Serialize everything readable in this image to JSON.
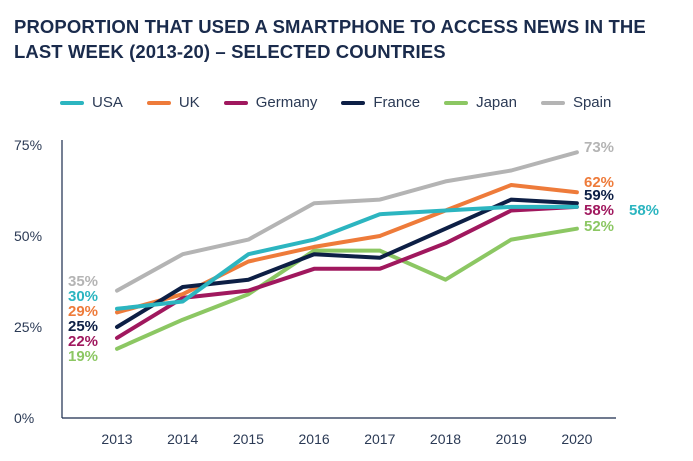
{
  "chart_data": {
    "type": "line",
    "title": "PROPORTION THAT USED A SMARTPHONE TO ACCESS NEWS IN THE LAST WEEK (2013-20) – SELECTED COUNTRIES",
    "xlabel": "",
    "ylabel": "",
    "ylim": [
      0,
      75
    ],
    "y_ticks": [
      0,
      25,
      50,
      75
    ],
    "y_tick_labels": [
      "0%",
      "25%",
      "50%",
      "75%"
    ],
    "categories": [
      "2013",
      "2014",
      "2015",
      "2016",
      "2017",
      "2018",
      "2019",
      "2020"
    ],
    "series": [
      {
        "name": "USA",
        "color": "#2cb5c0",
        "values": [
          30,
          32,
          45,
          49,
          56,
          57,
          58,
          58
        ],
        "start_label": "30%",
        "end_label": "58%"
      },
      {
        "name": "UK",
        "color": "#ee7b3a",
        "values": [
          29,
          34,
          43,
          47,
          50,
          57,
          64,
          62
        ],
        "start_label": "29%",
        "end_label": "62%"
      },
      {
        "name": "Germany",
        "color": "#a0185e",
        "values": [
          22,
          33,
          35,
          41,
          41,
          48,
          57,
          58
        ],
        "start_label": "22%",
        "end_label": "58%"
      },
      {
        "name": "France",
        "color": "#0d1f45",
        "values": [
          25,
          36,
          38,
          45,
          44,
          52,
          60,
          59
        ],
        "start_label": "25%",
        "end_label": "59%"
      },
      {
        "name": "Japan",
        "color": "#8cc763",
        "values": [
          19,
          27,
          34,
          46,
          46,
          38,
          49,
          52
        ],
        "start_label": "19%",
        "end_label": "52%"
      },
      {
        "name": "Spain",
        "color": "#b4b4b4",
        "values": [
          35,
          45,
          49,
          59,
          60,
          65,
          68,
          73
        ],
        "start_label": "35%",
        "end_label": "73%"
      }
    ],
    "grid": false,
    "legend_position": "top"
  }
}
